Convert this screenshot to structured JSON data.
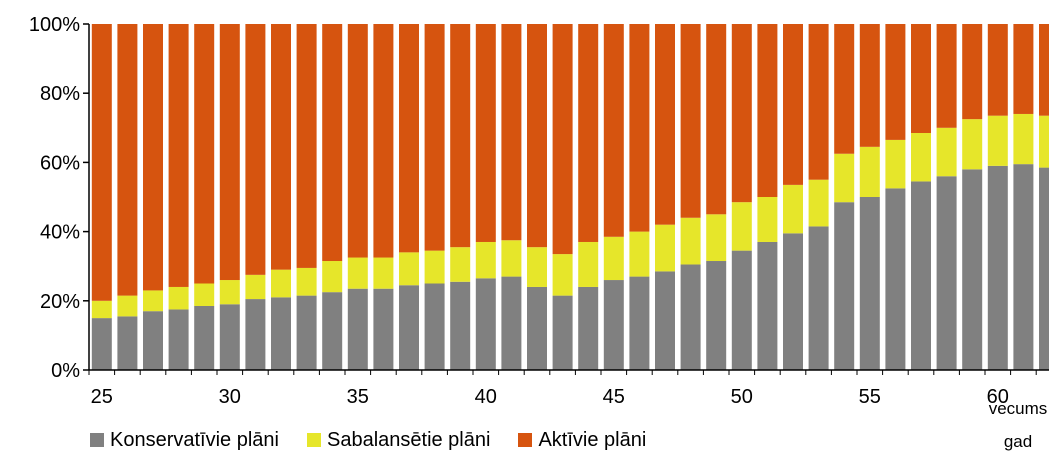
{
  "chart_data": {
    "type": "bar",
    "stacked": true,
    "normalized": true,
    "categories": [
      25,
      26,
      27,
      28,
      29,
      30,
      31,
      32,
      33,
      34,
      35,
      36,
      37,
      38,
      39,
      40,
      41,
      42,
      43,
      44,
      45,
      46,
      47,
      48,
      49,
      50,
      51,
      52,
      53,
      54,
      55,
      56,
      57,
      58,
      59,
      60,
      61,
      62
    ],
    "x_tick_labels": [
      "25",
      "30",
      "35",
      "40",
      "45",
      "50",
      "55",
      "60"
    ],
    "x_unit_label_line1": "vecums",
    "x_unit_label_line2": "gad",
    "y_tick_labels": [
      "0%",
      "20%",
      "40%",
      "60%",
      "80%",
      "100%"
    ],
    "ylim": [
      0,
      100
    ],
    "grid": false,
    "legend_position": "bottom",
    "series": [
      {
        "name": "Konservatīvie plāni",
        "color": "#808080",
        "values": [
          15,
          15.5,
          17,
          17.5,
          18.5,
          19,
          20.5,
          21,
          21.5,
          22.5,
          23.5,
          23.5,
          24.5,
          25,
          25.5,
          26.5,
          27,
          24,
          21.5,
          24,
          26,
          27,
          28.5,
          30.5,
          31.5,
          34.5,
          37,
          39.5,
          41.5,
          48.5,
          50,
          52.5,
          54.5,
          56,
          58,
          59,
          59.5,
          58.5
        ]
      },
      {
        "name": "Sabalansētie plāni",
        "color": "#e6e62a",
        "values": [
          5,
          6,
          6,
          6.5,
          6.5,
          7,
          7,
          8,
          8,
          9,
          9,
          9,
          9.5,
          9.5,
          10,
          10.5,
          10.5,
          11.5,
          12,
          13,
          12.5,
          13,
          13.5,
          13.5,
          13.5,
          14,
          13,
          14,
          13.5,
          14,
          14.5,
          14,
          14,
          14,
          14.5,
          14.5,
          14.5,
          15
        ]
      },
      {
        "name": "Aktīvie plāni",
        "color": "#d6540f",
        "values": [
          80,
          78.5,
          77,
          76,
          75,
          74,
          72.5,
          71,
          70.5,
          68.5,
          67.5,
          67.5,
          66,
          65.5,
          64.5,
          63,
          62.5,
          64.5,
          66.5,
          63,
          61.5,
          60,
          58,
          56,
          55,
          51.5,
          50,
          46.5,
          45,
          37.5,
          35.5,
          33.5,
          31.5,
          30,
          27.5,
          26.5,
          26,
          26.5
        ]
      }
    ]
  }
}
